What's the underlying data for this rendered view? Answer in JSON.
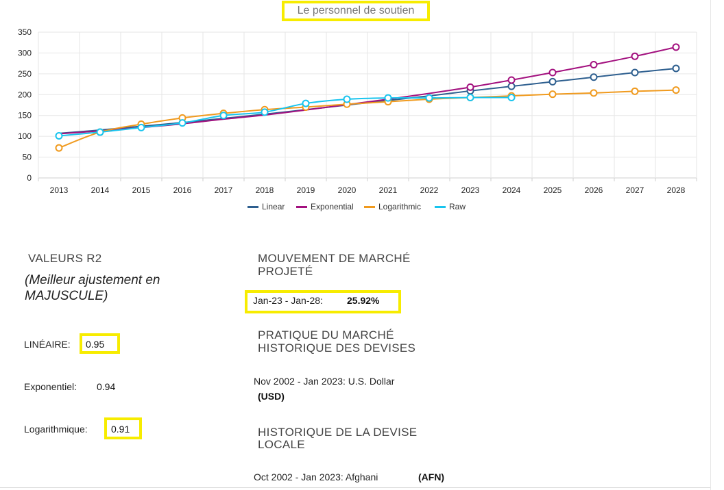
{
  "chart_data": {
    "type": "line",
    "title": "Le personnel de soutien",
    "categories": [
      "2013",
      "2014",
      "2015",
      "2016",
      "2017",
      "2018",
      "2019",
      "2020",
      "2021",
      "2022",
      "2023",
      "2024",
      "2025",
      "2026",
      "2027",
      "2028"
    ],
    "ylim": [
      0,
      350
    ],
    "yticks": [
      0,
      50,
      100,
      150,
      200,
      250,
      300,
      350
    ],
    "grid": true,
    "legend_position": "bottom",
    "series": [
      {
        "name": "Linear",
        "color": "#2e5f8f",
        "marker_from": "2023",
        "values": [
          107,
          115,
          124,
          133,
          143,
          153,
          164,
          175,
          186,
          197,
          209,
          220,
          231,
          242,
          253,
          263
        ]
      },
      {
        "name": "Exponential",
        "color": "#a3117f",
        "marker_from": "2023",
        "values": [
          106,
          113,
          121,
          130,
          141,
          151,
          163,
          176,
          189,
          203,
          218,
          235,
          253,
          272,
          292,
          314
        ]
      },
      {
        "name": "Logarithmic",
        "color": "#f09a1e",
        "marker_from": "2013",
        "values": [
          72,
          110,
          129,
          144,
          155,
          164,
          170,
          177,
          183,
          189,
          193,
          197,
          201,
          204,
          208,
          211
        ]
      },
      {
        "name": "Raw",
        "color": "#18c4ee",
        "marker_from": "2013",
        "values": [
          101,
          110,
          121,
          132,
          150,
          158,
          179,
          189,
          192,
          192,
          193,
          193,
          null,
          null,
          null,
          null
        ]
      }
    ]
  },
  "panel": {
    "r2_heading": "VALEURS R2",
    "best_fit_note": "(Meilleur ajustement en MAJUSCULE)",
    "linear_label": "LINÉAIRE:",
    "linear_value": "0.95",
    "exp_label": "Exponentiel:",
    "exp_value": "0.94",
    "log_label": "Logarithmique:",
    "log_value": "0.91",
    "market_heading_1": "MOUVEMENT DE MARCHÉ",
    "market_heading_2": "PROJETÉ",
    "projection_range": "Jan-23 - Jan-28:",
    "projection_value": "25.92%",
    "currency_heading_1": "PRATIQUE DU MARCHÉ",
    "currency_heading_2": "HISTORIQUE DES DEVISES",
    "currency_history_1": "Nov 2002 - Jan 2023: U.S. Dollar",
    "currency_history_2": "(USD)",
    "local_heading_1": "HISTORIQUE DE LA DEVISE",
    "local_heading_2": "LOCALE",
    "local_history": "Oct 2002 - Jan 2023: Afghani",
    "local_code": "(AFN)"
  }
}
